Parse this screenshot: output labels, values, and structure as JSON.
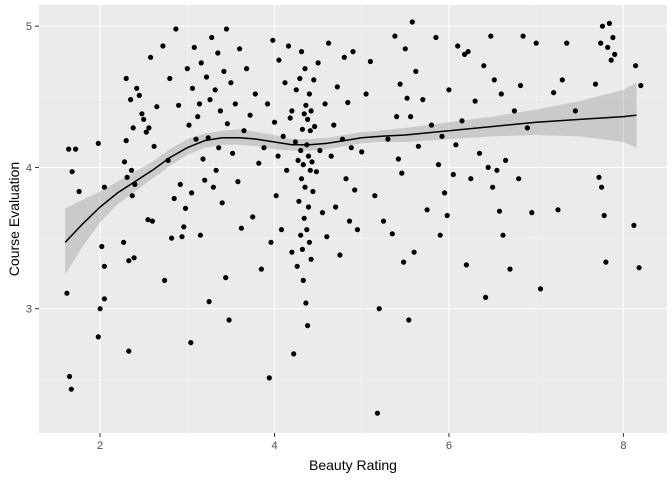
{
  "chart_data": {
    "type": "scatter",
    "title": "",
    "xlabel": "Beauty Rating",
    "ylabel": "Course Evaluation",
    "xlim": [
      1.3,
      8.5
    ],
    "ylim": [
      2.12,
      5.15
    ],
    "x_ticks": [
      2,
      4,
      6,
      8
    ],
    "x_tick_labels": [
      "2",
      "4",
      "6",
      "8"
    ],
    "y_ticks": [
      3,
      4,
      5
    ],
    "y_tick_labels": [
      "3",
      "4",
      "5"
    ],
    "grid": true,
    "legend": "none",
    "colors": {
      "panel_background": "#ebebeb",
      "grid_major": "#ffffff",
      "grid_minor": "#f7f7f7",
      "points": "#000000",
      "smooth_line": "#000000",
      "confidence_band": "#999999"
    },
    "points": [
      [
        1.62,
        3.11
      ],
      [
        1.65,
        2.52
      ],
      [
        1.67,
        2.43
      ],
      [
        1.64,
        4.13
      ],
      [
        1.68,
        3.97
      ],
      [
        1.72,
        4.13
      ],
      [
        1.76,
        3.83
      ],
      [
        1.98,
        2.8
      ],
      [
        2.0,
        3.0
      ],
      [
        2.02,
        3.44
      ],
      [
        2.05,
        3.07
      ],
      [
        2.05,
        3.3
      ],
      [
        1.98,
        4.17
      ],
      [
        2.05,
        3.86
      ],
      [
        2.28,
        4.04
      ],
      [
        2.3,
        4.19
      ],
      [
        2.27,
        3.47
      ],
      [
        2.31,
        3.93
      ],
      [
        2.33,
        3.34
      ],
      [
        2.33,
        2.7
      ],
      [
        2.3,
        4.63
      ],
      [
        2.35,
        4.48
      ],
      [
        2.38,
        4.28
      ],
      [
        2.39,
        3.36
      ],
      [
        2.36,
        3.98
      ],
      [
        2.4,
        3.88
      ],
      [
        2.37,
        3.8
      ],
      [
        2.42,
        4.56
      ],
      [
        2.45,
        4.51
      ],
      [
        2.48,
        4.38
      ],
      [
        2.5,
        4.34
      ],
      [
        2.53,
        4.25
      ],
      [
        2.56,
        4.28
      ],
      [
        2.58,
        4.78
      ],
      [
        2.62,
        4.15
      ],
      [
        2.55,
        3.63
      ],
      [
        2.6,
        3.62
      ],
      [
        2.65,
        4.43
      ],
      [
        2.72,
        4.86
      ],
      [
        2.74,
        3.2
      ],
      [
        2.78,
        4.05
      ],
      [
        2.8,
        4.63
      ],
      [
        2.82,
        3.5
      ],
      [
        2.85,
        3.78
      ],
      [
        2.87,
        4.98
      ],
      [
        2.9,
        4.44
      ],
      [
        2.92,
        3.88
      ],
      [
        2.94,
        3.51
      ],
      [
        2.96,
        3.58
      ],
      [
        2.98,
        3.71
      ],
      [
        3.0,
        4.7
      ],
      [
        3.02,
        4.3
      ],
      [
        3.04,
        2.76
      ],
      [
        3.05,
        3.82
      ],
      [
        3.06,
        4.56
      ],
      [
        3.08,
        4.85
      ],
      [
        3.1,
        4.2
      ],
      [
        3.12,
        4.36
      ],
      [
        3.14,
        4.45
      ],
      [
        3.15,
        3.52
      ],
      [
        3.16,
        4.74
      ],
      [
        3.18,
        4.06
      ],
      [
        3.2,
        3.91
      ],
      [
        3.22,
        4.64
      ],
      [
        3.24,
        4.21
      ],
      [
        3.25,
        3.05
      ],
      [
        3.26,
        4.48
      ],
      [
        3.28,
        4.92
      ],
      [
        3.3,
        3.86
      ],
      [
        3.32,
        4.55
      ],
      [
        3.33,
        3.98
      ],
      [
        3.35,
        4.81
      ],
      [
        3.36,
        4.14
      ],
      [
        3.38,
        4.4
      ],
      [
        3.4,
        3.75
      ],
      [
        3.42,
        4.68
      ],
      [
        3.44,
        3.22
      ],
      [
        3.45,
        4.98
      ],
      [
        3.46,
        4.31
      ],
      [
        3.48,
        2.92
      ],
      [
        3.5,
        4.6
      ],
      [
        3.52,
        4.1
      ],
      [
        3.55,
        4.45
      ],
      [
        3.58,
        3.9
      ],
      [
        3.6,
        4.84
      ],
      [
        3.62,
        3.57
      ],
      [
        3.65,
        4.26
      ],
      [
        3.68,
        4.7
      ],
      [
        3.72,
        4.37
      ],
      [
        3.75,
        3.65
      ],
      [
        3.78,
        4.52
      ],
      [
        3.82,
        4.03
      ],
      [
        3.85,
        3.28
      ],
      [
        3.88,
        4.14
      ],
      [
        3.92,
        4.45
      ],
      [
        3.94,
        2.51
      ],
      [
        3.96,
        3.47
      ],
      [
        3.98,
        4.9
      ],
      [
        4.0,
        4.32
      ],
      [
        4.02,
        3.8
      ],
      [
        4.04,
        4.08
      ],
      [
        4.05,
        4.76
      ],
      [
        4.08,
        3.56
      ],
      [
        4.1,
        4.22
      ],
      [
        4.12,
        4.6
      ],
      [
        4.14,
        3.98
      ],
      [
        4.16,
        4.86
      ],
      [
        4.18,
        4.35
      ],
      [
        4.2,
        4.4
      ],
      [
        4.2,
        3.4
      ],
      [
        4.22,
        2.68
      ],
      [
        4.24,
        4.18
      ],
      [
        4.25,
        4.55
      ],
      [
        4.26,
        3.3
      ],
      [
        4.27,
        4.05
      ],
      [
        4.28,
        3.76
      ],
      [
        4.29,
        4.63
      ],
      [
        4.3,
        3.52
      ],
      [
        4.3,
        4.12
      ],
      [
        4.31,
        4.82
      ],
      [
        4.31,
        3.92
      ],
      [
        4.32,
        4.27
      ],
      [
        4.32,
        3.42
      ],
      [
        4.33,
        4.02
      ],
      [
        4.33,
        3.2
      ],
      [
        4.34,
        4.38
      ],
      [
        4.34,
        3.64
      ],
      [
        4.35,
        4.7
      ],
      [
        4.35,
        3.86
      ],
      [
        4.36,
        4.44
      ],
      [
        4.36,
        3.04
      ],
      [
        4.37,
        4.16
      ],
      [
        4.37,
        3.56
      ],
      [
        4.38,
        4.34
      ],
      [
        4.38,
        2.88
      ],
      [
        4.39,
        4.08
      ],
      [
        4.39,
        3.72
      ],
      [
        4.4,
        4.52
      ],
      [
        4.4,
        3.47
      ],
      [
        4.41,
        4.26
      ],
      [
        4.41,
        3.98
      ],
      [
        4.42,
        4.4
      ],
      [
        4.42,
        3.35
      ],
      [
        4.43,
        4.04
      ],
      [
        4.44,
        3.83
      ],
      [
        4.45,
        4.62
      ],
      [
        4.46,
        4.29
      ],
      [
        4.48,
        3.97
      ],
      [
        4.5,
        4.74
      ],
      [
        4.52,
        4.12
      ],
      [
        4.55,
        3.68
      ],
      [
        4.58,
        4.45
      ],
      [
        4.6,
        3.51
      ],
      [
        4.62,
        4.88
      ],
      [
        4.65,
        4.08
      ],
      [
        4.68,
        4.3
      ],
      [
        4.7,
        3.72
      ],
      [
        4.72,
        4.57
      ],
      [
        4.75,
        3.38
      ],
      [
        4.78,
        4.2
      ],
      [
        4.8,
        4.78
      ],
      [
        4.82,
        3.92
      ],
      [
        4.84,
        4.46
      ],
      [
        4.86,
        3.62
      ],
      [
        4.88,
        4.14
      ],
      [
        4.9,
        4.82
      ],
      [
        4.92,
        3.84
      ],
      [
        4.95,
        3.56
      ],
      [
        5.0,
        4.11
      ],
      [
        5.05,
        4.52
      ],
      [
        5.1,
        4.75
      ],
      [
        5.15,
        3.8
      ],
      [
        5.18,
        2.26
      ],
      [
        5.2,
        3.0
      ],
      [
        5.25,
        3.62
      ],
      [
        5.3,
        4.2
      ],
      [
        5.35,
        3.53
      ],
      [
        5.38,
        4.93
      ],
      [
        5.4,
        4.36
      ],
      [
        5.42,
        4.06
      ],
      [
        5.44,
        4.59
      ],
      [
        5.46,
        3.96
      ],
      [
        5.48,
        3.33
      ],
      [
        5.5,
        4.84
      ],
      [
        5.52,
        4.49
      ],
      [
        5.54,
        2.92
      ],
      [
        5.56,
        4.36
      ],
      [
        5.58,
        5.03
      ],
      [
        5.6,
        3.4
      ],
      [
        5.62,
        4.68
      ],
      [
        5.65,
        4.15
      ],
      [
        5.7,
        4.48
      ],
      [
        5.75,
        3.7
      ],
      [
        5.8,
        4.3
      ],
      [
        5.85,
        4.92
      ],
      [
        5.88,
        4.02
      ],
      [
        5.9,
        3.52
      ],
      [
        5.92,
        4.22
      ],
      [
        5.95,
        3.82
      ],
      [
        5.98,
        3.66
      ],
      [
        6.0,
        4.55
      ],
      [
        6.05,
        3.95
      ],
      [
        6.08,
        4.16
      ],
      [
        6.1,
        4.86
      ],
      [
        6.15,
        4.33
      ],
      [
        6.18,
        4.8
      ],
      [
        6.2,
        3.31
      ],
      [
        6.22,
        4.82
      ],
      [
        6.25,
        3.92
      ],
      [
        6.3,
        4.47
      ],
      [
        6.35,
        4.1
      ],
      [
        6.4,
        4.72
      ],
      [
        6.42,
        3.08
      ],
      [
        6.45,
        4.0
      ],
      [
        6.48,
        4.93
      ],
      [
        6.5,
        3.86
      ],
      [
        6.52,
        4.62
      ],
      [
        6.55,
        3.98
      ],
      [
        6.58,
        3.69
      ],
      [
        6.6,
        4.52
      ],
      [
        6.62,
        3.52
      ],
      [
        6.65,
        4.05
      ],
      [
        6.7,
        3.28
      ],
      [
        6.75,
        4.4
      ],
      [
        6.8,
        3.92
      ],
      [
        6.82,
        4.58
      ],
      [
        6.85,
        4.93
      ],
      [
        6.9,
        4.28
      ],
      [
        6.95,
        3.68
      ],
      [
        7.0,
        4.88
      ],
      [
        7.05,
        3.14
      ],
      [
        7.2,
        4.53
      ],
      [
        7.25,
        3.7
      ],
      [
        7.3,
        4.62
      ],
      [
        7.35,
        4.88
      ],
      [
        7.45,
        4.4
      ],
      [
        7.68,
        4.59
      ],
      [
        7.72,
        3.93
      ],
      [
        7.74,
        4.88
      ],
      [
        7.75,
        3.86
      ],
      [
        7.76,
        5.0
      ],
      [
        7.78,
        3.66
      ],
      [
        7.8,
        3.33
      ],
      [
        7.82,
        4.85
      ],
      [
        7.84,
        5.02
      ],
      [
        7.86,
        4.76
      ],
      [
        7.88,
        4.92
      ],
      [
        7.9,
        4.8
      ],
      [
        8.12,
        3.59
      ],
      [
        8.14,
        4.72
      ],
      [
        8.18,
        3.29
      ],
      [
        8.2,
        4.58
      ]
    ],
    "smooth": {
      "method": "loess",
      "x": [
        1.6,
        1.8,
        2.0,
        2.2,
        2.4,
        2.6,
        2.8,
        3.0,
        3.2,
        3.4,
        3.6,
        3.8,
        4.0,
        4.2,
        4.4,
        4.6,
        4.8,
        5.0,
        5.2,
        5.5,
        6.0,
        6.5,
        7.0,
        7.5,
        8.0,
        8.15
      ],
      "y": [
        3.47,
        3.6,
        3.72,
        3.82,
        3.9,
        3.98,
        4.07,
        4.14,
        4.19,
        4.21,
        4.21,
        4.2,
        4.18,
        4.16,
        4.16,
        4.17,
        4.19,
        4.21,
        4.22,
        4.23,
        4.26,
        4.29,
        4.32,
        4.34,
        4.36,
        4.37
      ],
      "lower": [
        3.24,
        3.44,
        3.61,
        3.74,
        3.83,
        3.92,
        4.01,
        4.09,
        4.14,
        4.16,
        4.16,
        4.15,
        4.13,
        4.12,
        4.12,
        4.13,
        4.15,
        4.17,
        4.18,
        4.18,
        4.2,
        4.22,
        4.23,
        4.22,
        4.18,
        4.14
      ],
      "upper": [
        3.71,
        3.77,
        3.83,
        3.9,
        3.97,
        4.04,
        4.13,
        4.2,
        4.24,
        4.26,
        4.27,
        4.25,
        4.23,
        4.2,
        4.2,
        4.21,
        4.23,
        4.25,
        4.26,
        4.28,
        4.32,
        4.36,
        4.41,
        4.47,
        4.55,
        4.6
      ]
    }
  }
}
